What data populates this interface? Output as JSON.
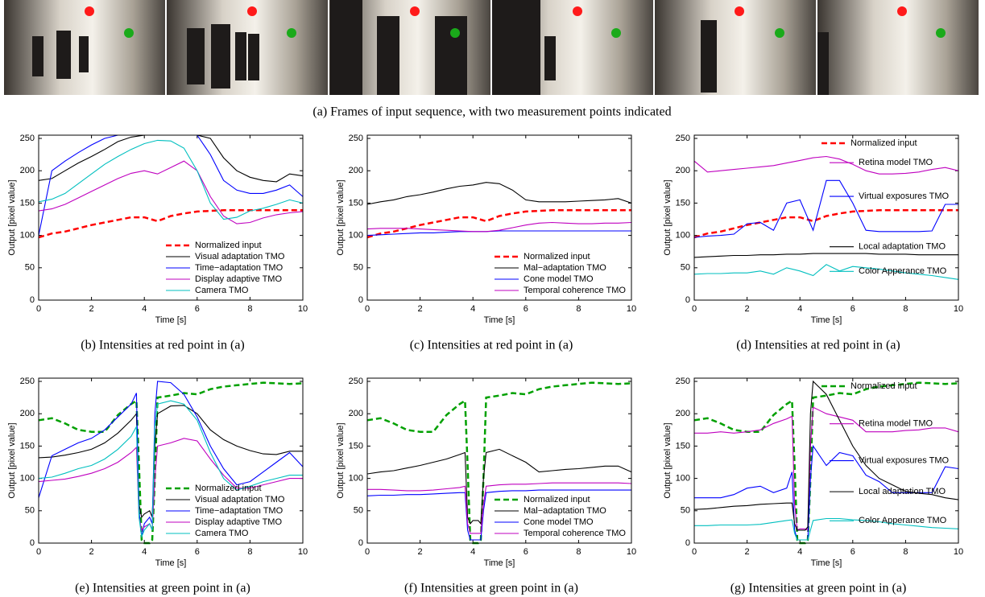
{
  "frames_caption": "(a)  Frames of input sequence, with two measurement points indicated",
  "chart_data": [
    {
      "type": "line",
      "caption": "(b)  Intensities at red point in (a)",
      "xlabel": "Time [s]",
      "ylabel": "Output [pixel value]",
      "xlim": [
        0,
        10
      ],
      "ylim": [
        0,
        255
      ],
      "xticks": [
        0,
        2,
        4,
        6,
        8,
        10
      ],
      "yticks": [
        0,
        50,
        100,
        150,
        200,
        250
      ],
      "grid": false,
      "legend": "lower right",
      "x": [
        0,
        0.5,
        1,
        1.5,
        2,
        2.5,
        3,
        3.5,
        4,
        4.5,
        5,
        5.5,
        6,
        6.5,
        7,
        7.5,
        8,
        8.5,
        9,
        9.5,
        10
      ],
      "series": [
        {
          "name": "Normalized input",
          "color": "#ff0000",
          "dashed": true,
          "values": [
            97,
            103,
            106,
            111,
            116,
            120,
            124,
            128,
            128,
            122,
            130,
            134,
            137,
            138,
            139,
            139,
            139,
            139,
            139,
            139,
            139
          ]
        },
        {
          "name": "Visual adaptation TMO",
          "color": "#000000",
          "values": [
            185,
            188,
            200,
            212,
            222,
            233,
            245,
            252,
            255,
            255,
            255,
            255,
            255,
            250,
            220,
            200,
            190,
            185,
            183,
            195,
            192
          ]
        },
        {
          "name": "Time−adaptation TMO",
          "color": "#0000ff",
          "values": [
            100,
            200,
            215,
            228,
            240,
            250,
            255,
            255,
            255,
            255,
            255,
            255,
            255,
            225,
            185,
            170,
            165,
            165,
            170,
            178,
            160
          ]
        },
        {
          "name": "Display adaptive TMO",
          "color": "#bf00bf",
          "values": [
            138,
            141,
            148,
            158,
            168,
            178,
            188,
            196,
            200,
            195,
            205,
            215,
            200,
            160,
            130,
            118,
            120,
            127,
            132,
            135,
            137
          ]
        },
        {
          "name": "Camera TMO",
          "color": "#00bfbf",
          "values": [
            152,
            156,
            165,
            180,
            195,
            210,
            222,
            233,
            242,
            247,
            246,
            235,
            200,
            150,
            125,
            128,
            138,
            142,
            148,
            155,
            150
          ]
        }
      ]
    },
    {
      "type": "line",
      "caption": "(c)  Intensities at red point in (a)",
      "xlabel": "Time [s]",
      "ylabel": "Output [pixel value]",
      "xlim": [
        0,
        10
      ],
      "ylim": [
        0,
        255
      ],
      "xticks": [
        0,
        2,
        4,
        6,
        8,
        10
      ],
      "yticks": [
        0,
        50,
        100,
        150,
        200,
        250
      ],
      "grid": false,
      "legend": "lower right",
      "x": [
        0,
        0.5,
        1,
        1.5,
        2,
        2.5,
        3,
        3.5,
        4,
        4.5,
        5,
        5.5,
        6,
        6.5,
        7,
        7.5,
        8,
        8.5,
        9,
        9.5,
        10
      ],
      "series": [
        {
          "name": "Normalized input",
          "color": "#ff0000",
          "dashed": true,
          "values": [
            97,
            103,
            106,
            111,
            116,
            120,
            124,
            128,
            128,
            122,
            130,
            134,
            137,
            138,
            139,
            139,
            139,
            139,
            139,
            139,
            139
          ]
        },
        {
          "name": "Mal−adaptation TMO",
          "color": "#000000",
          "values": [
            148,
            152,
            155,
            160,
            163,
            167,
            172,
            176,
            178,
            182,
            180,
            170,
            155,
            152,
            152,
            152,
            153,
            154,
            155,
            157,
            150
          ]
        },
        {
          "name": "Cone model TMO",
          "color": "#0000ff",
          "values": [
            100,
            101,
            102,
            103,
            104,
            104,
            105,
            106,
            106,
            106,
            107,
            107,
            107,
            107,
            107,
            107,
            107,
            107,
            107,
            107,
            107
          ]
        },
        {
          "name": "Temporal coherence TMO",
          "color": "#bf00bf",
          "values": [
            110,
            111,
            111,
            111,
            110,
            109,
            108,
            107,
            106,
            106,
            108,
            112,
            116,
            119,
            120,
            119,
            118,
            118,
            119,
            119,
            120
          ]
        }
      ]
    },
    {
      "type": "line",
      "caption": "(d)  Intensities at red point in (a)",
      "xlabel": "Time [s]",
      "ylabel": "Output [pixel value]",
      "xlim": [
        0,
        10
      ],
      "ylim": [
        0,
        255
      ],
      "xticks": [
        0,
        2,
        4,
        6,
        8,
        10
      ],
      "yticks": [
        0,
        50,
        100,
        150,
        200,
        250
      ],
      "grid": false,
      "legend": "inline",
      "x": [
        0,
        0.5,
        1,
        1.5,
        2,
        2.5,
        3,
        3.5,
        4,
        4.5,
        5,
        5.5,
        6,
        6.5,
        7,
        7.5,
        8,
        8.5,
        9,
        9.5,
        10
      ],
      "series": [
        {
          "name": "Normalized input",
          "color": "#ff0000",
          "dashed": true,
          "values": [
            97,
            103,
            106,
            111,
            116,
            120,
            124,
            128,
            128,
            122,
            130,
            134,
            137,
            138,
            139,
            139,
            139,
            139,
            139,
            139,
            139
          ]
        },
        {
          "name": "Retina model TMO",
          "color": "#bf00bf",
          "values": [
            215,
            198,
            200,
            202,
            204,
            206,
            208,
            212,
            216,
            220,
            222,
            218,
            210,
            200,
            195,
            195,
            196,
            198,
            202,
            205,
            200
          ]
        },
        {
          "name": "Virtual exposures TMO",
          "color": "#0000ff",
          "values": [
            97,
            99,
            100,
            102,
            118,
            120,
            108,
            150,
            155,
            108,
            185,
            185,
            150,
            108,
            106,
            106,
            106,
            106,
            107,
            148,
            148
          ]
        },
        {
          "name": "Local adaptation TMO",
          "color": "#000000",
          "values": [
            66,
            67,
            68,
            69,
            69,
            70,
            70,
            71,
            71,
            72,
            72,
            72,
            72,
            72,
            71,
            71,
            71,
            70,
            70,
            70,
            70
          ]
        },
        {
          "name": "Color Apperance TMO",
          "color": "#00bfbf",
          "values": [
            40,
            41,
            41,
            42,
            42,
            45,
            40,
            50,
            45,
            38,
            55,
            45,
            52,
            50,
            48,
            45,
            42,
            40,
            38,
            35,
            32
          ]
        }
      ]
    },
    {
      "type": "line",
      "caption": "(e)  Intensities at green point in (a)",
      "xlabel": "Time [s]",
      "ylabel": "Output [pixel value]",
      "xlim": [
        0,
        10
      ],
      "ylim": [
        0,
        255
      ],
      "xticks": [
        0,
        2,
        4,
        6,
        8,
        10
      ],
      "yticks": [
        0,
        50,
        100,
        150,
        200,
        250
      ],
      "grid": false,
      "legend": "lower right",
      "x": [
        0,
        0.5,
        1,
        1.5,
        2,
        2.5,
        3,
        3.5,
        3.7,
        3.8,
        3.9,
        4,
        4.2,
        4.3,
        4.4,
        4.5,
        5,
        5.5,
        6,
        6.5,
        7,
        7.5,
        8,
        8.5,
        9,
        9.5,
        10
      ],
      "series": [
        {
          "name": "Normalized input",
          "color": "#00a000",
          "dashed": true,
          "values": [
            190,
            193,
            185,
            175,
            172,
            172,
            198,
            215,
            220,
            120,
            5,
            0,
            0,
            5,
            100,
            225,
            228,
            232,
            230,
            238,
            242,
            244,
            246,
            248,
            247,
            246,
            247
          ]
        },
        {
          "name": "Visual adaptation TMO",
          "color": "#000000",
          "values": [
            132,
            133,
            136,
            140,
            145,
            155,
            170,
            190,
            200,
            60,
            40,
            45,
            50,
            40,
            150,
            200,
            212,
            213,
            200,
            175,
            160,
            150,
            143,
            138,
            137,
            142,
            142
          ]
        },
        {
          "name": "Time−adaptation TMO",
          "color": "#0000ff",
          "values": [
            70,
            135,
            145,
            155,
            162,
            175,
            195,
            215,
            232,
            50,
            10,
            30,
            40,
            30,
            200,
            250,
            248,
            230,
            195,
            150,
            115,
            90,
            95,
            110,
            125,
            140,
            118
          ]
        },
        {
          "name": "Display adaptive TMO",
          "color": "#bf00bf",
          "values": [
            95,
            97,
            99,
            103,
            108,
            115,
            125,
            140,
            148,
            40,
            20,
            25,
            30,
            20,
            100,
            150,
            155,
            162,
            158,
            130,
            105,
            85,
            85,
            90,
            95,
            100,
            100
          ]
        },
        {
          "name": "Camera TMO",
          "color": "#00bfbf",
          "values": [
            100,
            102,
            108,
            115,
            120,
            130,
            145,
            165,
            180,
            40,
            10,
            20,
            30,
            20,
            180,
            215,
            220,
            215,
            190,
            140,
            100,
            82,
            88,
            95,
            100,
            105,
            105
          ]
        }
      ]
    },
    {
      "type": "line",
      "caption": "(f)  Intensities at green point in (a)",
      "xlabel": "Time [s]",
      "ylabel": "Output [pixel value]",
      "xlim": [
        0,
        10
      ],
      "ylim": [
        0,
        255
      ],
      "xticks": [
        0,
        2,
        4,
        6,
        8,
        10
      ],
      "yticks": [
        0,
        50,
        100,
        150,
        200,
        250
      ],
      "grid": false,
      "legend": "lower right",
      "x": [
        0,
        0.5,
        1,
        1.5,
        2,
        2.5,
        3,
        3.5,
        3.7,
        3.8,
        3.9,
        4,
        4.2,
        4.3,
        4.4,
        4.5,
        5,
        5.5,
        6,
        6.5,
        7,
        7.5,
        8,
        8.5,
        9,
        9.5,
        10
      ],
      "series": [
        {
          "name": "Normalized input",
          "color": "#00a000",
          "dashed": true,
          "values": [
            190,
            193,
            185,
            175,
            172,
            172,
            198,
            215,
            220,
            120,
            5,
            0,
            0,
            5,
            100,
            225,
            228,
            232,
            230,
            238,
            242,
            244,
            246,
            248,
            247,
            246,
            247
          ]
        },
        {
          "name": "Mal−adaptation TMO",
          "color": "#000000",
          "values": [
            107,
            110,
            112,
            116,
            120,
            125,
            130,
            137,
            140,
            40,
            30,
            35,
            35,
            30,
            100,
            140,
            145,
            135,
            125,
            110,
            112,
            114,
            115,
            117,
            119,
            119,
            110
          ]
        },
        {
          "name": "Cone model TMO",
          "color": "#0000ff",
          "values": [
            73,
            74,
            74,
            75,
            75,
            76,
            77,
            78,
            78,
            20,
            5,
            5,
            5,
            5,
            50,
            78,
            80,
            81,
            81,
            82,
            82,
            82,
            82,
            82,
            82,
            82,
            82
          ]
        },
        {
          "name": "Temporal coherence TMO",
          "color": "#bf00bf",
          "values": [
            83,
            83,
            82,
            81,
            81,
            82,
            84,
            86,
            88,
            30,
            15,
            15,
            15,
            15,
            60,
            88,
            90,
            91,
            91,
            92,
            93,
            93,
            93,
            93,
            93,
            93,
            92
          ]
        }
      ]
    },
    {
      "type": "line",
      "caption": "(g)  Intensities at green point in (a)",
      "xlabel": "Time [s]",
      "ylabel": "Output [pixel value]",
      "xlim": [
        0,
        10
      ],
      "ylim": [
        0,
        255
      ],
      "xticks": [
        0,
        2,
        4,
        6,
        8,
        10
      ],
      "yticks": [
        0,
        50,
        100,
        150,
        200,
        250
      ],
      "grid": false,
      "legend": "inline",
      "x": [
        0,
        0.5,
        1,
        1.5,
        2,
        2.5,
        3,
        3.5,
        3.7,
        3.8,
        3.9,
        4,
        4.2,
        4.3,
        4.4,
        4.5,
        5,
        5.5,
        6,
        6.5,
        7,
        7.5,
        8,
        8.5,
        9,
        9.5,
        10
      ],
      "series": [
        {
          "name": "Normalized input",
          "color": "#00a000",
          "dashed": true,
          "values": [
            190,
            193,
            185,
            175,
            172,
            172,
            198,
            215,
            220,
            120,
            5,
            0,
            0,
            5,
            100,
            225,
            228,
            232,
            230,
            238,
            242,
            244,
            246,
            248,
            247,
            246,
            247
          ]
        },
        {
          "name": "Retina model TMO",
          "color": "#bf00bf",
          "values": [
            170,
            170,
            172,
            170,
            172,
            175,
            185,
            192,
            196,
            60,
            20,
            22,
            22,
            20,
            150,
            210,
            200,
            195,
            190,
            172,
            172,
            172,
            174,
            175,
            178,
            178,
            172
          ]
        },
        {
          "name": "Virtual exposures TMO",
          "color": "#0000ff",
          "values": [
            70,
            70,
            70,
            75,
            85,
            88,
            78,
            85,
            110,
            20,
            5,
            5,
            5,
            5,
            100,
            150,
            120,
            140,
            135,
            105,
            95,
            78,
            78,
            78,
            78,
            118,
            115
          ]
        },
        {
          "name": "Local adaptation TMO",
          "color": "#000000",
          "values": [
            52,
            53,
            55,
            57,
            58,
            60,
            61,
            62,
            62,
            30,
            20,
            20,
            20,
            25,
            200,
            250,
            230,
            190,
            150,
            120,
            100,
            90,
            80,
            77,
            75,
            70,
            67
          ]
        },
        {
          "name": "Color Apperance TMO",
          "color": "#00bfbf",
          "values": [
            27,
            27,
            28,
            28,
            28,
            29,
            32,
            35,
            36,
            15,
            5,
            5,
            5,
            5,
            20,
            35,
            38,
            38,
            36,
            35,
            33,
            30,
            28,
            26,
            24,
            23,
            22
          ]
        }
      ]
    }
  ]
}
